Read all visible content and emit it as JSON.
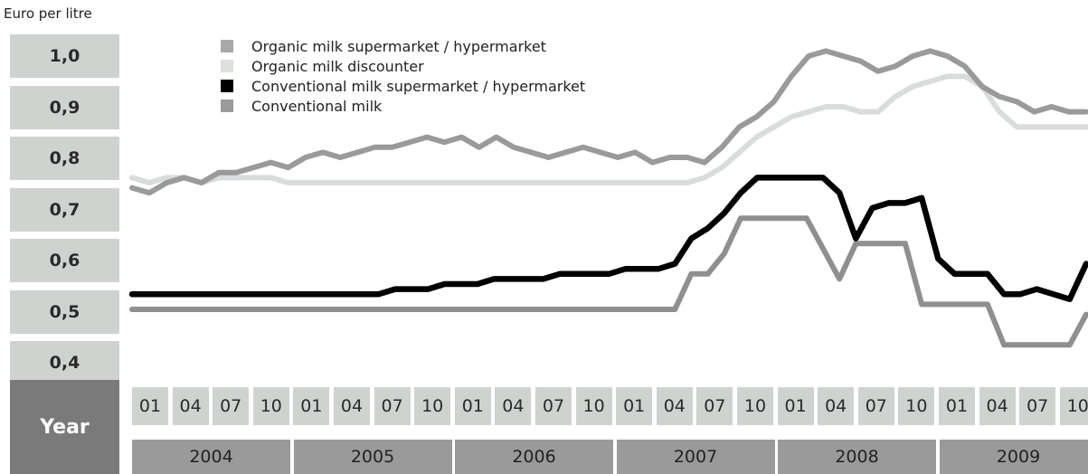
{
  "chart_data": {
    "type": "line",
    "ylabel": "Euro per litre",
    "yticks": [
      "1,0",
      "0,9",
      "0,8",
      "0,7",
      "0,6",
      "0,5",
      "0,4"
    ],
    "ylim": [
      0.4,
      1.0
    ],
    "x_axis_title": "Year",
    "months": [
      "01",
      "04",
      "07",
      "10",
      "01",
      "04",
      "07",
      "10",
      "01",
      "04",
      "07",
      "10",
      "01",
      "04",
      "07",
      "10",
      "01",
      "04",
      "07",
      "10",
      "01",
      "04",
      "07",
      "10"
    ],
    "years": [
      "2004",
      "2005",
      "2006",
      "2007",
      "2008",
      "2009"
    ],
    "legend_position": "top-left",
    "series": [
      {
        "name": "Organic milk supermarket / hypermarket",
        "color": "#9a9a9a",
        "values": [
          0.74,
          0.73,
          0.75,
          0.76,
          0.75,
          0.77,
          0.77,
          0.78,
          0.79,
          0.78,
          0.8,
          0.81,
          0.8,
          0.81,
          0.82,
          0.82,
          0.83,
          0.84,
          0.83,
          0.84,
          0.82,
          0.84,
          0.82,
          0.81,
          0.8,
          0.81,
          0.82,
          0.81,
          0.8,
          0.81,
          0.79,
          0.8,
          0.8,
          0.79,
          0.82,
          0.86,
          0.88,
          0.91,
          0.96,
          1.0,
          1.01,
          1.0,
          0.99,
          0.97,
          0.98,
          1.0,
          1.01,
          1.0,
          0.98,
          0.94,
          0.92,
          0.91,
          0.89,
          0.9,
          0.89,
          0.89
        ]
      },
      {
        "name": "Organic milk discounter",
        "color": "#d9ddd9",
        "values": [
          0.76,
          0.75,
          0.76,
          0.76,
          0.75,
          0.76,
          0.76,
          0.76,
          0.76,
          0.75,
          0.75,
          0.75,
          0.75,
          0.75,
          0.75,
          0.75,
          0.75,
          0.75,
          0.75,
          0.75,
          0.75,
          0.75,
          0.75,
          0.75,
          0.75,
          0.75,
          0.75,
          0.75,
          0.75,
          0.75,
          0.75,
          0.75,
          0.75,
          0.76,
          0.78,
          0.81,
          0.84,
          0.86,
          0.88,
          0.89,
          0.9,
          0.9,
          0.89,
          0.89,
          0.92,
          0.94,
          0.95,
          0.96,
          0.96,
          0.94,
          0.89,
          0.86,
          0.86,
          0.86,
          0.86,
          0.86
        ]
      },
      {
        "name": "Conventional milk supermarket / hypermarket",
        "color": "#000000",
        "values": [
          0.53,
          0.53,
          0.53,
          0.53,
          0.53,
          0.53,
          0.53,
          0.53,
          0.53,
          0.53,
          0.53,
          0.53,
          0.53,
          0.53,
          0.53,
          0.53,
          0.54,
          0.54,
          0.54,
          0.55,
          0.55,
          0.55,
          0.56,
          0.56,
          0.56,
          0.56,
          0.57,
          0.57,
          0.57,
          0.57,
          0.58,
          0.58,
          0.58,
          0.59,
          0.64,
          0.66,
          0.69,
          0.73,
          0.76,
          0.76,
          0.76,
          0.76,
          0.76,
          0.73,
          0.64,
          0.7,
          0.71,
          0.71,
          0.72,
          0.6,
          0.57,
          0.57,
          0.57,
          0.53,
          0.53,
          0.54,
          0.53,
          0.52,
          0.59
        ]
      },
      {
        "name": "Conventional milk",
        "color": "#8f8f8f",
        "values": [
          0.5,
          0.5,
          0.5,
          0.5,
          0.5,
          0.5,
          0.5,
          0.5,
          0.5,
          0.5,
          0.5,
          0.5,
          0.5,
          0.5,
          0.5,
          0.5,
          0.5,
          0.5,
          0.5,
          0.5,
          0.5,
          0.5,
          0.5,
          0.5,
          0.5,
          0.5,
          0.5,
          0.5,
          0.5,
          0.5,
          0.5,
          0.5,
          0.5,
          0.5,
          0.57,
          0.57,
          0.61,
          0.68,
          0.68,
          0.68,
          0.68,
          0.68,
          0.62,
          0.56,
          0.63,
          0.63,
          0.63,
          0.63,
          0.51,
          0.51,
          0.51,
          0.51,
          0.51,
          0.43,
          0.43,
          0.43,
          0.43,
          0.43,
          0.49
        ]
      }
    ]
  }
}
